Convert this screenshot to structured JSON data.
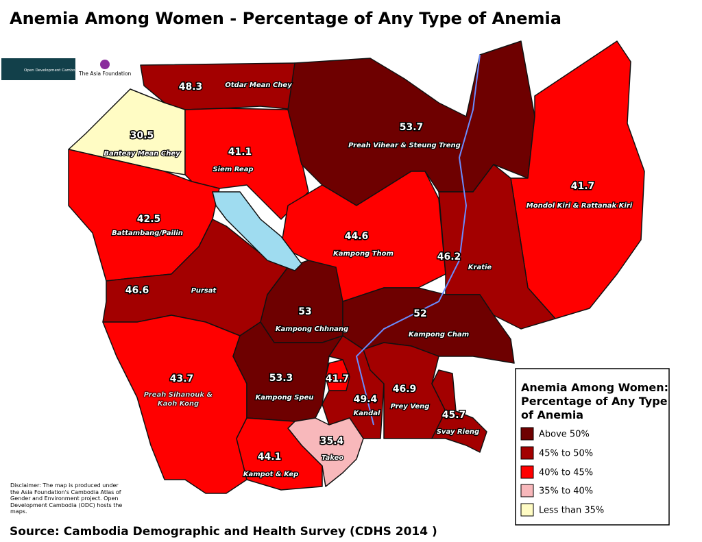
{
  "title": "Anemia Among Women - Percentage of Any Type of Anemia",
  "logos": [
    "Open Development Cambodia",
    "The Asia Foundation"
  ],
  "regions": [
    {
      "name": "Otdar Mean Chey",
      "value": 48.3,
      "color": "#a30000"
    },
    {
      "name": "Banteay Mean Chey",
      "value": 30.5,
      "color": "#fffcc4"
    },
    {
      "name": "Siem Reap",
      "value": 41.1,
      "color": "#ff0000"
    },
    {
      "name": "Preah Vihear & Steung Treng",
      "value": 53.7,
      "color": "#6e0000"
    },
    {
      "name": "Mondol Kiri & Rattanak Kiri",
      "value": 41.7,
      "color": "#ff0000"
    },
    {
      "name": "Battambang/Pailin",
      "value": 42.5,
      "color": "#ff0000"
    },
    {
      "name": "Kampong Thom",
      "value": 44.6,
      "color": "#ff0000"
    },
    {
      "name": "Kratie",
      "value": 46.2,
      "color": "#a30000"
    },
    {
      "name": "Pursat",
      "value": 46.6,
      "color": "#a30000"
    },
    {
      "name": "Kampong Chhnang",
      "value": 53,
      "color": "#6e0000"
    },
    {
      "name": "Kampong Cham",
      "value": 52,
      "color": "#6e0000"
    },
    {
      "name": "Preah Sihanouk & Kaoh Kong",
      "value": 43.7,
      "color": "#ff0000"
    },
    {
      "name": "Kampong Speu",
      "value": 53.3,
      "color": "#6e0000"
    },
    {
      "value": 41.7,
      "color": "#ff0000"
    },
    {
      "name": "Kandal",
      "value": 49.4,
      "color": "#a30000"
    },
    {
      "name": "Prey Veng",
      "value": 46.9,
      "color": "#a30000"
    },
    {
      "name": "Svay Rieng",
      "value": 45.7,
      "color": "#a30000"
    },
    {
      "name": "Takeo",
      "value": 35.4,
      "color": "#f8b8bb"
    },
    {
      "name": "Kampot & Kep",
      "value": 44.1,
      "color": "#ff0000"
    }
  ],
  "legend": {
    "title": "Anemia Among Women: Percentage of Any Type of Anemia",
    "items": [
      {
        "label": "Above 50%",
        "color": "#6e0000"
      },
      {
        "label": "45% to 50%",
        "color": "#a30000"
      },
      {
        "label": "40% to 45%",
        "color": "#ff0000"
      },
      {
        "label": "35% to 40%",
        "color": "#f8b8bb"
      },
      {
        "label": "Less than 35%",
        "color": "#fffcc4"
      }
    ]
  },
  "disclaimer": "Disclaimer: The map is produced under the Asia Foundation's Cambodia Atlas of Gender and Environment project. Open Development Cambodia (ODC) hosts the maps.",
  "source": "Source:  Cambodia Demographic and Health Survey (CDHS 2014 )"
}
